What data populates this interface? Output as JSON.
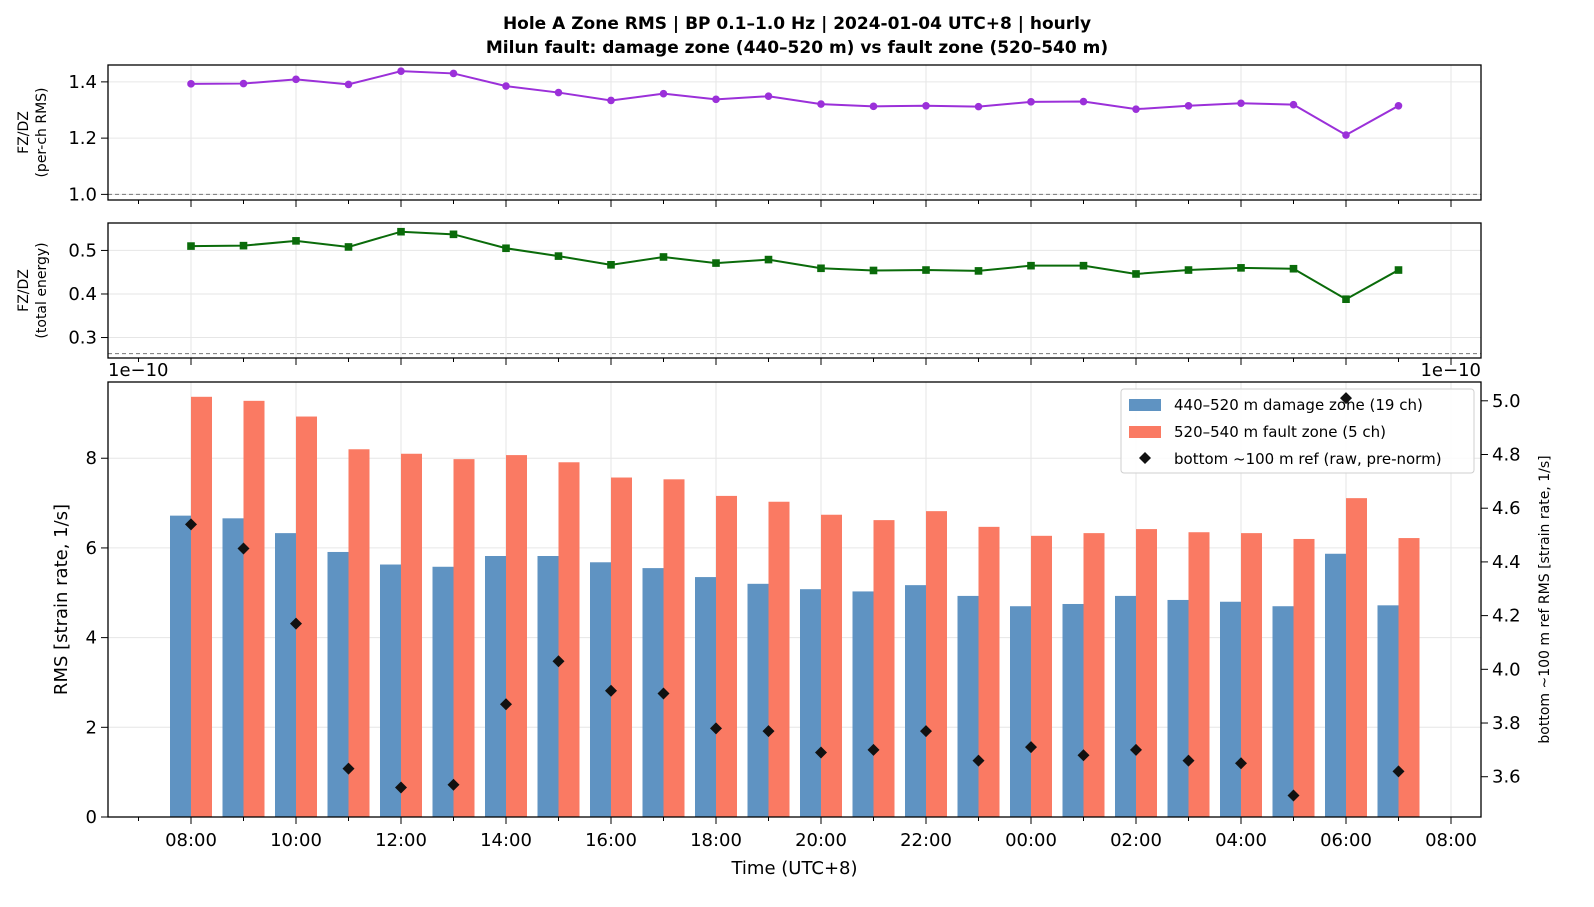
{
  "figure": {
    "title_line1": "Hole A Zone RMS  |  BP 0.1–1.0 Hz  |  2024-01-04 UTC+8  |  hourly",
    "title_line2": "Milun fault: damage zone (440–520 m) vs fault zone (520–540 m)"
  },
  "colors": {
    "ratio_rms": "#9b30d9",
    "ratio_energy": "#0a6b0a",
    "damage_zone": "#5f93c2",
    "fault_zone": "#fa7a63",
    "reference": "#111111",
    "grid": "#e6e6e6"
  },
  "chart_data": [
    {
      "type": "line",
      "id": "ratio_rms",
      "ylabel_line1": "FZ/DZ",
      "ylabel_line2": "(per-ch RMS)",
      "x": [
        "08:00",
        "09:00",
        "10:00",
        "11:00",
        "12:00",
        "13:00",
        "14:00",
        "15:00",
        "16:00",
        "17:00",
        "18:00",
        "19:00",
        "20:00",
        "21:00",
        "22:00",
        "23:00",
        "00:00",
        "01:00",
        "02:00",
        "03:00",
        "04:00",
        "05:00",
        "06:00",
        "07:00"
      ],
      "values": [
        1.393,
        1.394,
        1.409,
        1.391,
        1.438,
        1.43,
        1.385,
        1.362,
        1.334,
        1.358,
        1.338,
        1.349,
        1.321,
        1.313,
        1.315,
        1.312,
        1.329,
        1.33,
        1.303,
        1.315,
        1.324,
        1.319,
        1.211,
        1.315
      ],
      "ylim": [
        0.98,
        1.46
      ],
      "yticks": [
        1.0,
        1.2,
        1.4
      ],
      "ytick_labels": [
        "1.0",
        "1.2",
        "1.4"
      ],
      "reference_line": 1.0,
      "marker": "circle",
      "grid": true
    },
    {
      "type": "line",
      "id": "ratio_energy",
      "ylabel_line1": "FZ/DZ",
      "ylabel_line2": "(total energy)",
      "x": [
        "08:00",
        "09:00",
        "10:00",
        "11:00",
        "12:00",
        "13:00",
        "14:00",
        "15:00",
        "16:00",
        "17:00",
        "18:00",
        "19:00",
        "20:00",
        "21:00",
        "22:00",
        "23:00",
        "00:00",
        "01:00",
        "02:00",
        "03:00",
        "04:00",
        "05:00",
        "06:00",
        "07:00"
      ],
      "values": [
        0.51,
        0.511,
        0.522,
        0.508,
        0.543,
        0.537,
        0.505,
        0.487,
        0.467,
        0.485,
        0.471,
        0.479,
        0.459,
        0.454,
        0.455,
        0.453,
        0.465,
        0.465,
        0.446,
        0.455,
        0.46,
        0.458,
        0.388,
        0.455
      ],
      "ylim": [
        0.253,
        0.563
      ],
      "yticks": [
        0.3,
        0.4,
        0.5
      ],
      "ytick_labels": [
        "0.3",
        "0.4",
        "0.5"
      ],
      "reference_line": 0.263,
      "marker": "square",
      "grid": true
    },
    {
      "type": "bar",
      "id": "zone_rms",
      "xlabel": "Time (UTC+8)",
      "ylabel": "RMS  [strain rate, 1/s]",
      "ylabel_right": "bottom ~100 m ref RMS  [strain rate, 1/s]",
      "scale_label_left": "1e−10",
      "scale_label_right": "1e−10",
      "categories": [
        "08:00",
        "09:00",
        "10:00",
        "11:00",
        "12:00",
        "13:00",
        "14:00",
        "15:00",
        "16:00",
        "17:00",
        "18:00",
        "19:00",
        "20:00",
        "21:00",
        "22:00",
        "23:00",
        "00:00",
        "01:00",
        "02:00",
        "03:00",
        "04:00",
        "05:00",
        "06:00",
        "07:00"
      ],
      "xtick_labels": [
        "08:00",
        "10:00",
        "12:00",
        "14:00",
        "16:00",
        "18:00",
        "20:00",
        "22:00",
        "00:00",
        "02:00",
        "04:00",
        "06:00",
        "08:00"
      ],
      "series": [
        {
          "name": "440–520 m  damage zone (19 ch)",
          "axis": "left",
          "values": [
            6.72,
            6.66,
            6.33,
            5.91,
            5.63,
            5.58,
            5.82,
            5.82,
            5.68,
            5.55,
            5.35,
            5.2,
            5.08,
            5.03,
            5.17,
            4.93,
            4.7,
            4.75,
            4.93,
            4.84,
            4.8,
            4.7,
            5.87,
            4.72
          ]
        },
        {
          "name": "520–540 m  fault zone (5 ch)",
          "axis": "left",
          "values": [
            9.37,
            9.28,
            8.93,
            8.2,
            8.1,
            7.98,
            8.07,
            7.91,
            7.57,
            7.53,
            7.16,
            7.03,
            6.74,
            6.62,
            6.82,
            6.47,
            6.27,
            6.33,
            6.42,
            6.35,
            6.33,
            6.2,
            7.11,
            6.22
          ]
        },
        {
          "name": "bottom ~100 m ref (raw, pre-norm)",
          "axis": "right",
          "marker": "diamond",
          "values": [
            4.54,
            4.45,
            4.17,
            3.63,
            3.56,
            3.57,
            3.87,
            4.03,
            3.92,
            3.91,
            3.78,
            3.77,
            3.69,
            3.7,
            3.77,
            3.66,
            3.71,
            3.68,
            3.7,
            3.66,
            3.65,
            3.53,
            5.01,
            3.62
          ]
        }
      ],
      "ylim": [
        0,
        9.7
      ],
      "yticks": [
        0,
        2,
        4,
        6,
        8
      ],
      "ylim_right": [
        3.45,
        5.07
      ],
      "yticks_right": [
        3.6,
        3.8,
        4.0,
        4.2,
        4.4,
        4.6,
        4.8,
        5.0
      ],
      "ytick_labels_right": [
        "3.6",
        "3.8",
        "4.0",
        "4.2",
        "4.4",
        "4.6",
        "4.8",
        "5.0"
      ],
      "legend_position": "top-right",
      "grid": true
    }
  ]
}
